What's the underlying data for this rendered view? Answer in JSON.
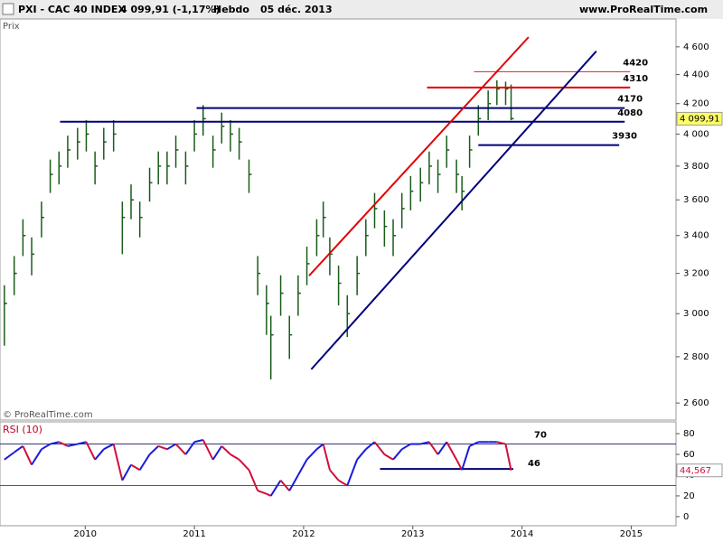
{
  "source": "www.ProRealTime.com",
  "chart_data": [
    {
      "type": "ohlc",
      "title": "PXI - CAC 40 INDEX",
      "quote": "4 099,91 (-1,17%)",
      "period": "Hebdo",
      "date": "05 déc. 2013",
      "y_label": "Prix",
      "watermark": "© ProRealTime.com",
      "log_scale": true,
      "color": "#1a5c1a",
      "xlim": [
        2009.22,
        2015.41
      ],
      "ylim": [
        2530,
        4810
      ],
      "yticks": [
        {
          "value": 2600,
          "label": "2 600"
        },
        {
          "value": 2800,
          "label": "2 800"
        },
        {
          "value": 3000,
          "label": "3 000"
        },
        {
          "value": 3200,
          "label": "3 200"
        },
        {
          "value": 3400,
          "label": "3 400"
        },
        {
          "value": 3600,
          "label": "3 600"
        },
        {
          "value": 3800,
          "label": "3 800"
        },
        {
          "value": 4000,
          "label": "4 000"
        },
        {
          "value": 4200,
          "label": "4 200"
        },
        {
          "value": 4400,
          "label": "4 400"
        },
        {
          "value": 4600,
          "label": "4 600"
        }
      ],
      "x": [
        2009.26,
        2009.35,
        2009.43,
        2009.51,
        2009.6,
        2009.68,
        2009.76,
        2009.84,
        2009.93,
        2010.01,
        2010.09,
        2010.17,
        2010.26,
        2010.34,
        2010.42,
        2010.5,
        2010.59,
        2010.67,
        2010.75,
        2010.83,
        2010.92,
        2011.0,
        2011.08,
        2011.17,
        2011.25,
        2011.33,
        2011.41,
        2011.5,
        2011.58,
        2011.66,
        2011.7,
        2011.79,
        2011.87,
        2011.95,
        2012.03,
        2012.12,
        2012.18,
        2012.24,
        2012.32,
        2012.4,
        2012.49,
        2012.57,
        2012.65,
        2012.74,
        2012.82,
        2012.9,
        2012.98,
        2013.07,
        2013.15,
        2013.23,
        2013.31,
        2013.4,
        2013.45,
        2013.52,
        2013.6,
        2013.69,
        2013.77,
        2013.85,
        2013.9
      ],
      "high": [
        3140,
        3290,
        3490,
        3390,
        3590,
        3840,
        3890,
        3990,
        4040,
        4090,
        3890,
        4040,
        4090,
        3590,
        3690,
        3590,
        3790,
        3890,
        3890,
        3990,
        3890,
        4090,
        4190,
        3990,
        4140,
        4090,
        4040,
        3840,
        3290,
        3140,
        2990,
        3190,
        2990,
        3190,
        3340,
        3490,
        3590,
        3390,
        3240,
        3090,
        3290,
        3490,
        3640,
        3540,
        3490,
        3640,
        3740,
        3790,
        3890,
        3840,
        3990,
        3840,
        3740,
        3990,
        4190,
        4290,
        4360,
        4350,
        4330
      ],
      "low": [
        2850,
        3090,
        3290,
        3190,
        3390,
        3640,
        3690,
        3790,
        3840,
        3890,
        3690,
        3840,
        3890,
        3300,
        3490,
        3390,
        3590,
        3690,
        3690,
        3790,
        3690,
        3890,
        3990,
        3790,
        3940,
        3890,
        3840,
        3640,
        3090,
        2900,
        2700,
        2990,
        2790,
        2990,
        3140,
        3290,
        3390,
        3190,
        3040,
        2890,
        3090,
        3290,
        3440,
        3340,
        3290,
        3440,
        3540,
        3590,
        3690,
        3640,
        3790,
        3640,
        3540,
        3790,
        3990,
        4090,
        4190,
        4190,
        4090
      ],
      "close": [
        3050,
        3200,
        3400,
        3300,
        3500,
        3750,
        3800,
        3900,
        3950,
        4000,
        3800,
        3950,
        4000,
        3500,
        3600,
        3500,
        3700,
        3800,
        3800,
        3900,
        3800,
        4000,
        4100,
        3900,
        4050,
        4000,
        3950,
        3750,
        3200,
        3050,
        2900,
        3100,
        2900,
        3100,
        3250,
        3400,
        3500,
        3300,
        3150,
        3000,
        3200,
        3400,
        3550,
        3450,
        3400,
        3550,
        3650,
        3700,
        3800,
        3750,
        3900,
        3750,
        3650,
        3900,
        4100,
        4200,
        4300,
        4300,
        4099.91
      ],
      "last_price": {
        "value": 4099.91,
        "label": "4 099,91",
        "color": "#ffff66"
      },
      "levels": [
        {
          "value": 4420,
          "start": 2013.56,
          "end": 2014.99,
          "color": "#e02020"
        },
        {
          "value": 4310,
          "start": 2013.13,
          "end": 2014.99,
          "color": "#e00000"
        },
        {
          "value": 4170,
          "start": 2011.02,
          "end": 2014.94,
          "color": "#00007a"
        },
        {
          "value": 4080,
          "start": 2009.77,
          "end": 2014.94,
          "color": "#00007a"
        },
        {
          "value": 3930,
          "start": 2013.6,
          "end": 2014.89,
          "color": "#00007a"
        }
      ],
      "trend_lines": [
        {
          "x": [
            2012.05,
            2014.06
          ],
          "values": [
            3188,
            4672
          ],
          "color": "#e00000"
        },
        {
          "x": [
            2012.07,
            2014.68
          ],
          "values": [
            2744,
            4568
          ],
          "color": "#00007a"
        }
      ]
    },
    {
      "type": "line",
      "title": "RSI (10)",
      "up_color": "#1a1adc",
      "down_color": "#d0103a",
      "xlim": [
        2009.22,
        2015.41
      ],
      "ylim": [
        -8.8,
        91.4
      ],
      "xticks": [
        2010,
        2011,
        2012,
        2013,
        2014,
        2015
      ],
      "yticks": [
        0,
        20,
        40,
        60,
        80
      ],
      "x": [
        2009.26,
        2009.35,
        2009.43,
        2009.51,
        2009.6,
        2009.68,
        2009.76,
        2009.84,
        2009.93,
        2010.01,
        2010.09,
        2010.17,
        2010.26,
        2010.34,
        2010.42,
        2010.5,
        2010.59,
        2010.67,
        2010.75,
        2010.83,
        2010.92,
        2011.0,
        2011.08,
        2011.17,
        2011.25,
        2011.33,
        2011.41,
        2011.5,
        2011.58,
        2011.66,
        2011.7,
        2011.79,
        2011.87,
        2011.95,
        2012.03,
        2012.12,
        2012.18,
        2012.24,
        2012.32,
        2012.4,
        2012.49,
        2012.57,
        2012.65,
        2012.74,
        2012.82,
        2012.9,
        2012.98,
        2013.07,
        2013.15,
        2013.23,
        2013.31,
        2013.4,
        2013.45,
        2013.52,
        2013.6,
        2013.69,
        2013.77,
        2013.85,
        2013.9
      ],
      "values": [
        55,
        62,
        68,
        50,
        65,
        70,
        72,
        68,
        70,
        72,
        55,
        65,
        70,
        35,
        50,
        45,
        60,
        68,
        65,
        70,
        60,
        72,
        74,
        55,
        68,
        60,
        55,
        45,
        25,
        22,
        20,
        35,
        25,
        40,
        55,
        65,
        70,
        45,
        35,
        30,
        55,
        65,
        72,
        60,
        55,
        65,
        70,
        70,
        72,
        60,
        72,
        55,
        45,
        68,
        72,
        72,
        72,
        70,
        44.567
      ],
      "last_value": {
        "value": 44.567,
        "label": "44,567",
        "color": "#d0103a"
      },
      "bands": [
        70,
        30
      ],
      "levels": [
        {
          "value": 46,
          "start": 2012.7,
          "end": 2013.92,
          "color": "#00007a"
        }
      ]
    }
  ]
}
